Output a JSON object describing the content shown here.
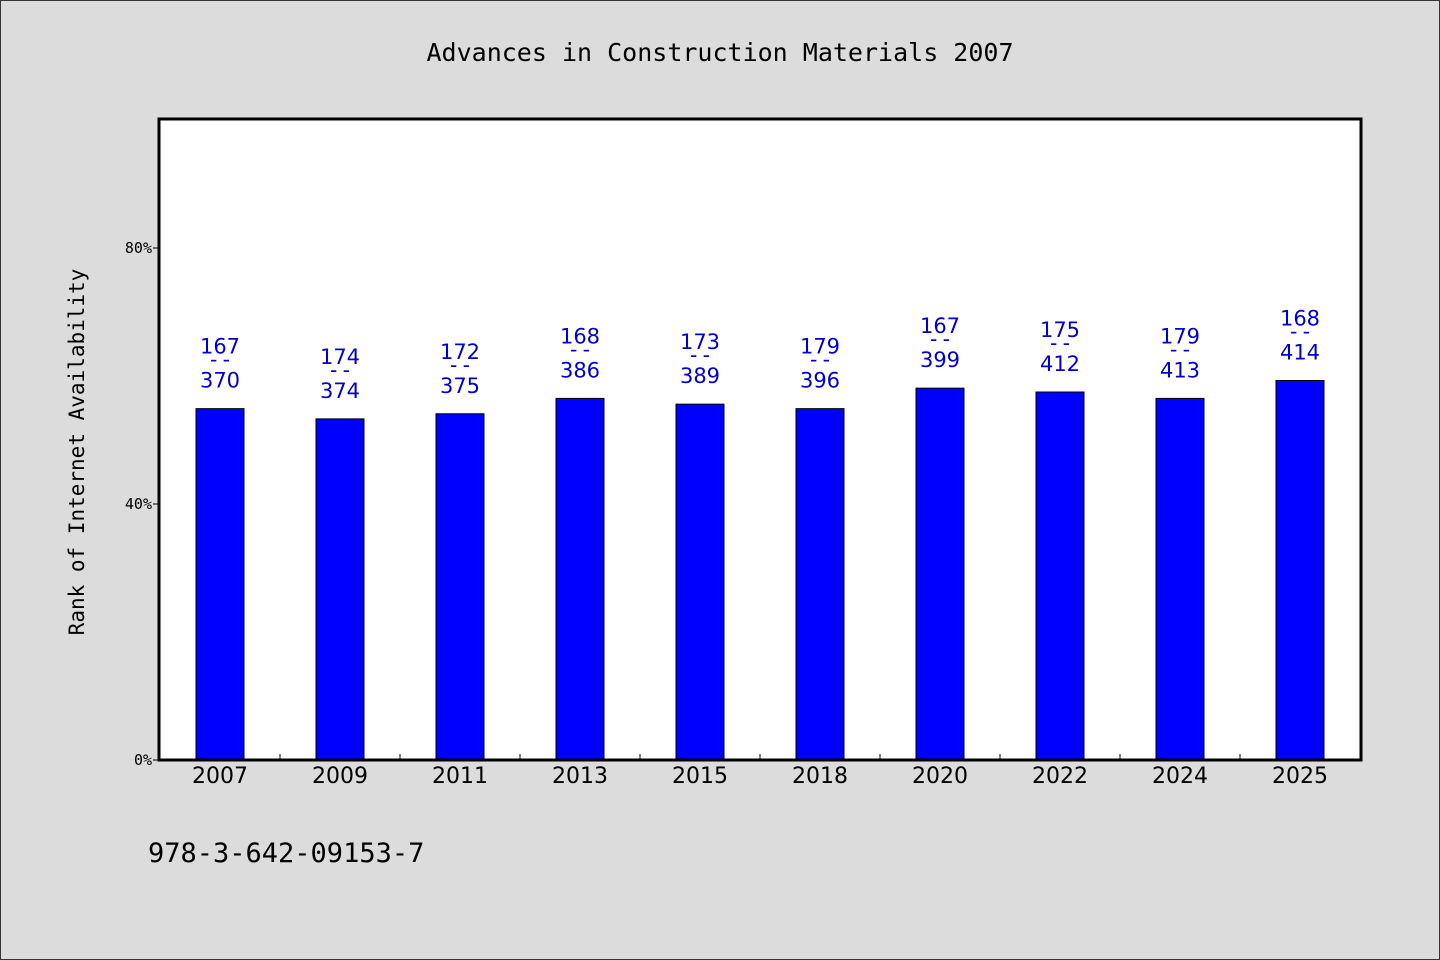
{
  "chart_data": {
    "type": "bar",
    "title": "Advances in Construction Materials 2007",
    "xlabel": "",
    "ylabel": "Rank of Internet Availability",
    "ylim": [
      0,
      100
    ],
    "yticks": [
      {
        "value": 0,
        "label": "0%"
      },
      {
        "value": 40,
        "label": "40%"
      },
      {
        "value": 80,
        "label": "80%"
      }
    ],
    "grid": false,
    "categories": [
      "2007",
      "2009",
      "2011",
      "2013",
      "2015",
      "2018",
      "2020",
      "2022",
      "2024",
      "2025"
    ],
    "values": [
      54.9,
      53.3,
      54.1,
      56.5,
      55.6,
      54.9,
      58.1,
      57.5,
      56.5,
      59.3
    ],
    "bar_labels": [
      {
        "top": "167",
        "sep": "--",
        "bottom": "370"
      },
      {
        "top": "174",
        "sep": "--",
        "bottom": "374"
      },
      {
        "top": "172",
        "sep": "--",
        "bottom": "375"
      },
      {
        "top": "168",
        "sep": "--",
        "bottom": "386"
      },
      {
        "top": "173",
        "sep": "--",
        "bottom": "389"
      },
      {
        "top": "179",
        "sep": "--",
        "bottom": "396"
      },
      {
        "top": "167",
        "sep": "--",
        "bottom": "399"
      },
      {
        "top": "175",
        "sep": "--",
        "bottom": "412"
      },
      {
        "top": "179",
        "sep": "--",
        "bottom": "413"
      },
      {
        "top": "168",
        "sep": "--",
        "bottom": "414"
      }
    ],
    "bar_color": "#0000ff",
    "label_color": "#0000cc"
  },
  "footer": {
    "isbn": "978-3-642-09153-7"
  }
}
